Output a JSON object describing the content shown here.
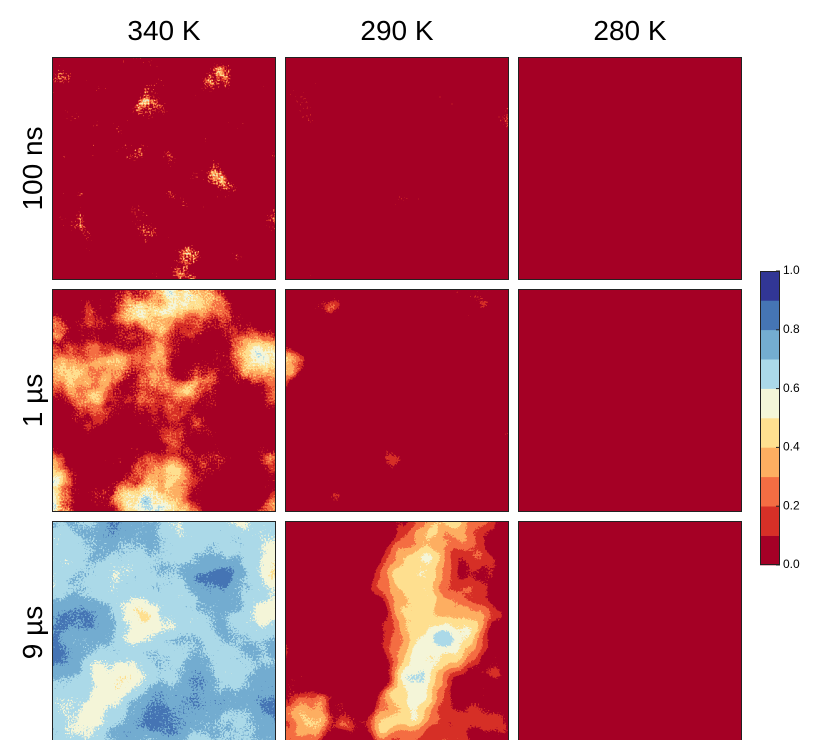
{
  "figure": {
    "columns": [
      "340 K",
      "290 K",
      "280 K"
    ],
    "rows": [
      "100 ns",
      "1 µs",
      "9 µs"
    ],
    "colorbar": {
      "range": [
        0,
        1
      ],
      "ticks": [
        {
          "value": 0,
          "label": "0.0"
        },
        {
          "value": 0.2,
          "label": "0.2"
        },
        {
          "value": 0.4,
          "label": "0.4"
        },
        {
          "value": 0.6,
          "label": "0.6"
        },
        {
          "value": 0.8,
          "label": "0.8"
        },
        {
          "value": 1,
          "label": "1.0"
        }
      ],
      "colors": [
        "#a50026",
        "#d73027",
        "#f46d43",
        "#fdae61",
        "#fee090",
        "#f4f6d8",
        "#abd9e9",
        "#74add1",
        "#4575b4",
        "#313695"
      ]
    }
  }
}
